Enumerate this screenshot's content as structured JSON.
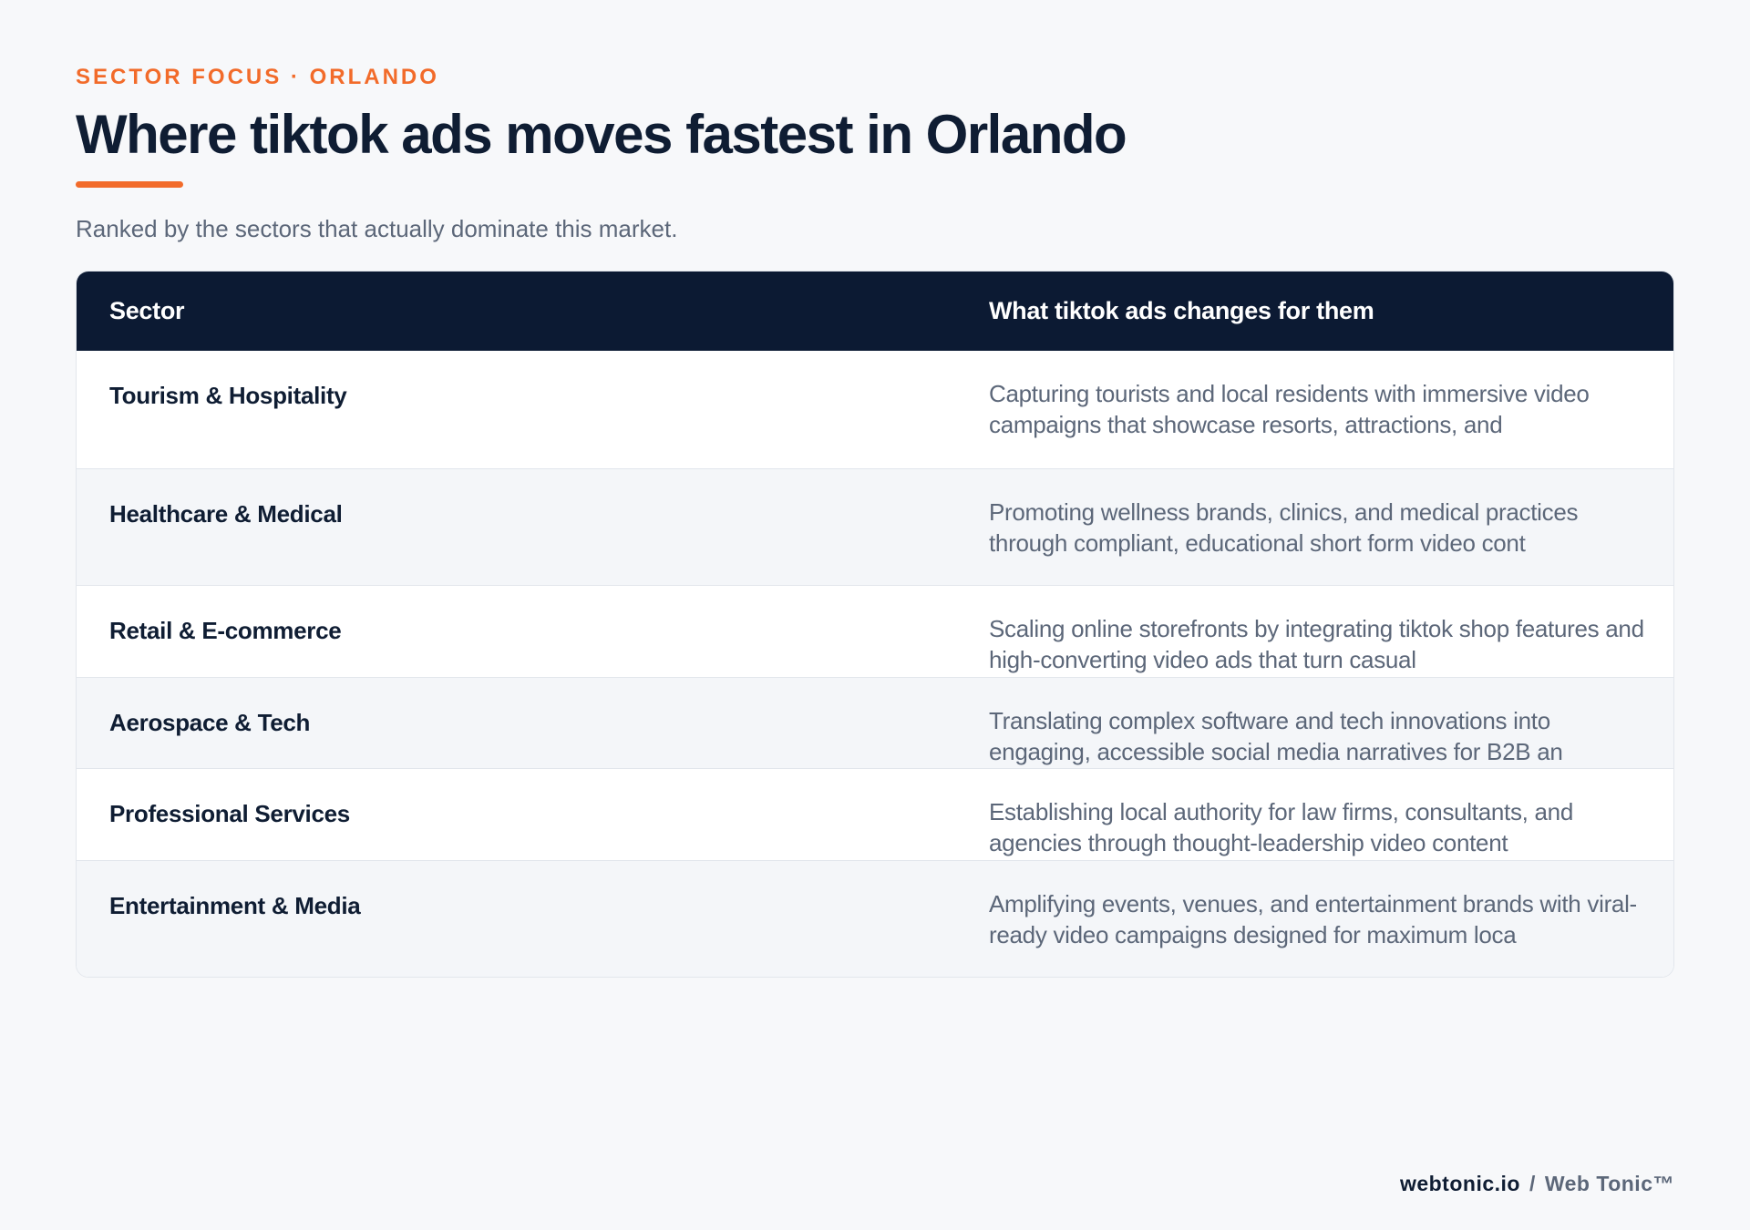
{
  "header": {
    "eyebrow": "SECTOR FOCUS · ORLANDO",
    "title": "Where tiktok ads moves fastest in Orlando",
    "subtitle": "Ranked by the sectors that actually dominate this market."
  },
  "table": {
    "columns": {
      "sector": "Sector",
      "change": "What tiktok ads changes for them"
    },
    "rows": [
      {
        "sector": "Tourism & Hospitality",
        "change": "Capturing tourists and local residents with immersive video campaigns that showcase resorts, attractions, and"
      },
      {
        "sector": "Healthcare & Medical",
        "change": "Promoting wellness brands, clinics, and medical practices through compliant, educational short form video cont"
      },
      {
        "sector": "Retail & E-commerce",
        "change": "Scaling online storefronts by integrating tiktok shop features and high-converting video ads that turn casual"
      },
      {
        "sector": "Aerospace & Tech",
        "change": "Translating complex software and tech innovations into engaging, accessible social media narratives for B2B an"
      },
      {
        "sector": "Professional Services",
        "change": "Establishing local authority for law firms, consultants, and agencies through thought-leadership video content"
      },
      {
        "sector": "Entertainment & Media",
        "change": "Amplifying events, venues, and entertainment brands with viral-ready video campaigns designed for maximum loca"
      }
    ]
  },
  "footer": {
    "domain": "webtonic.io",
    "separator": "/",
    "brand": "Web Tonic™"
  },
  "colors": {
    "accent": "#f26b2a",
    "navy": "#0c1a33",
    "text_primary": "#0f1d33",
    "text_muted": "#5c6779",
    "page_background": "#f7f8fa"
  }
}
